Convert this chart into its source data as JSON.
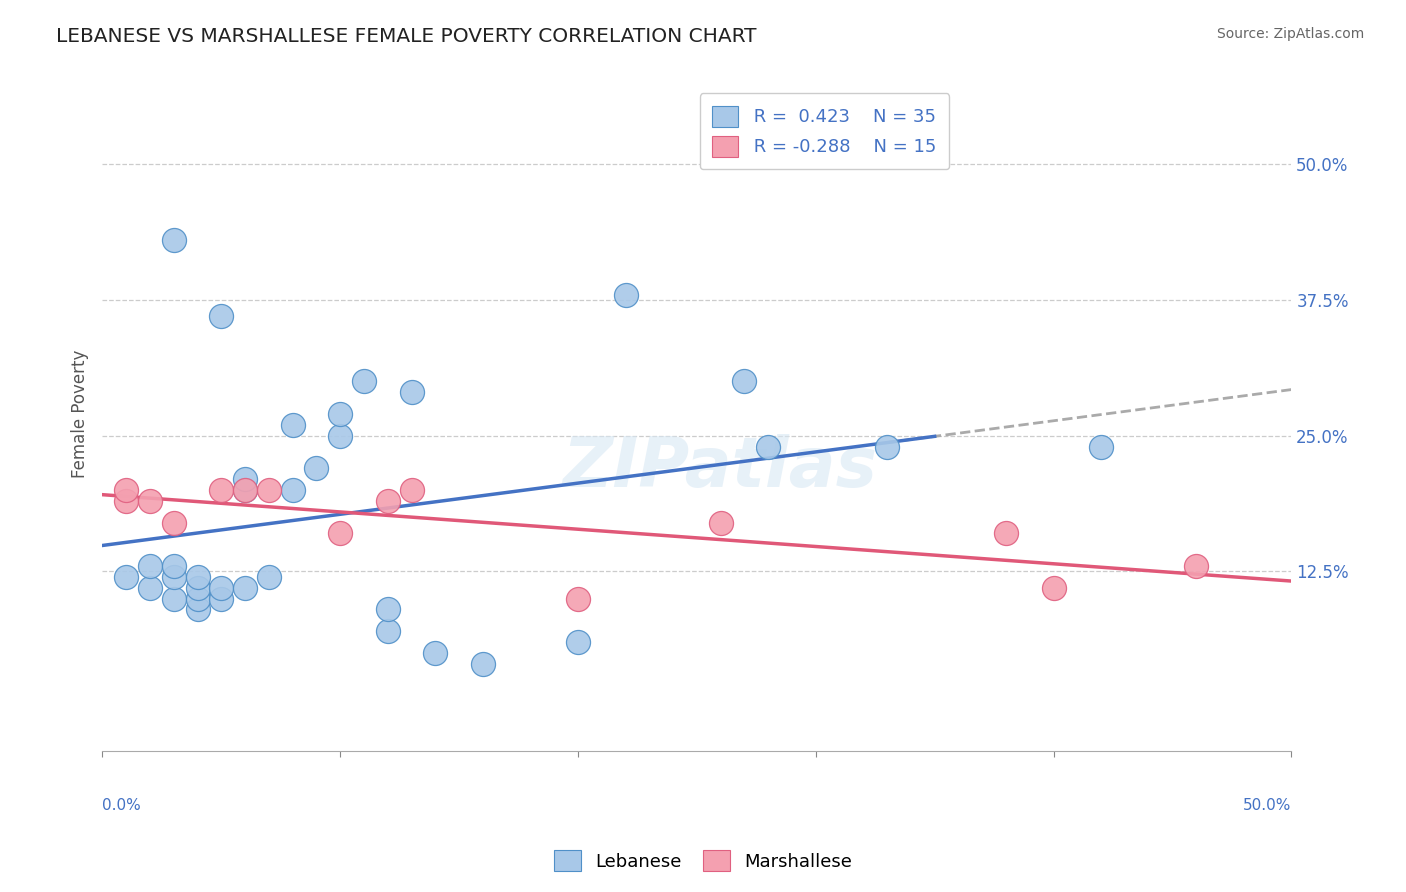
{
  "title": "LEBANESE VS MARSHALLESE FEMALE POVERTY CORRELATION CHART",
  "source": "Source: ZipAtlas.com",
  "ylabel": "Female Poverty",
  "xlim": [
    0.0,
    0.5
  ],
  "ylim": [
    -0.04,
    0.58
  ],
  "ytick_positions": [
    0.0,
    0.125,
    0.25,
    0.375,
    0.5
  ],
  "ytick_labels_right": [
    "",
    "12.5%",
    "25.0%",
    "37.5%",
    "50.0%"
  ],
  "legend_text_1": "R =  0.423    N = 35",
  "legend_text_2": "R = -0.288    N = 15",
  "lebanese_color": "#a8c8e8",
  "marshallese_color": "#f4a0b0",
  "lebanese_edge_color": "#5090c8",
  "marshallese_edge_color": "#e06080",
  "trend_line_color_lebanese": "#4472c4",
  "trend_line_color_marshallese": "#e05878",
  "dash_color": "#aaaaaa",
  "watermark_color": "#d8e8f4",
  "background_color": "#ffffff",
  "grid_color": "#cccccc",
  "ytick_color": "#4472c4",
  "title_color": "#222222",
  "source_color": "#666666",
  "ylabel_color": "#555555",
  "legend_label_color": "#333333",
  "lebanese_x": [
    0.01,
    0.02,
    0.02,
    0.03,
    0.03,
    0.03,
    0.04,
    0.04,
    0.04,
    0.04,
    0.05,
    0.05,
    0.06,
    0.06,
    0.07,
    0.08,
    0.08,
    0.09,
    0.1,
    0.1,
    0.11,
    0.12,
    0.12,
    0.13,
    0.14,
    0.16,
    0.2,
    0.22,
    0.27,
    0.28,
    0.33,
    0.42,
    0.03,
    0.05,
    0.06
  ],
  "lebanese_y": [
    0.12,
    0.11,
    0.13,
    0.1,
    0.12,
    0.13,
    0.09,
    0.1,
    0.11,
    0.12,
    0.1,
    0.11,
    0.11,
    0.2,
    0.12,
    0.2,
    0.26,
    0.22,
    0.25,
    0.27,
    0.3,
    0.07,
    0.09,
    0.29,
    0.05,
    0.04,
    0.06,
    0.38,
    0.3,
    0.24,
    0.24,
    0.24,
    0.43,
    0.36,
    0.21
  ],
  "marshallese_x": [
    0.01,
    0.01,
    0.02,
    0.03,
    0.05,
    0.06,
    0.07,
    0.1,
    0.12,
    0.13,
    0.2,
    0.26,
    0.38,
    0.4,
    0.46
  ],
  "marshallese_y": [
    0.19,
    0.2,
    0.19,
    0.17,
    0.2,
    0.2,
    0.2,
    0.16,
    0.19,
    0.2,
    0.1,
    0.17,
    0.16,
    0.11,
    0.13
  ]
}
